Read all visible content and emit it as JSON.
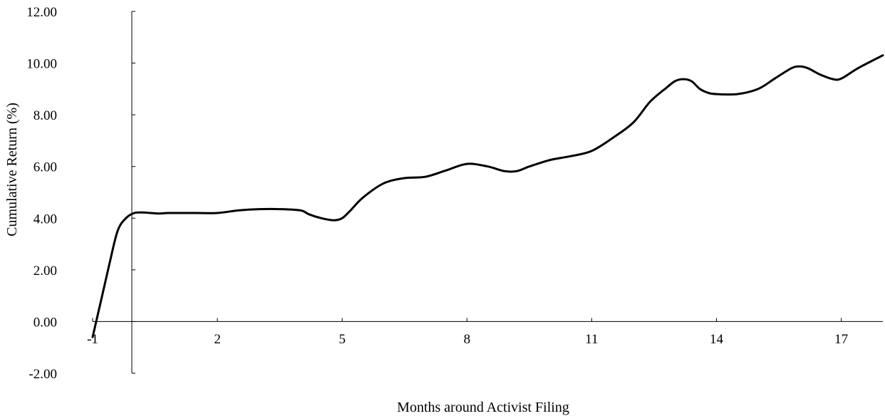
{
  "chart_data": {
    "type": "line",
    "title": "",
    "xlabel": "Months around Activist Filing",
    "ylabel": "Cumulative Return (%)",
    "xlim": [
      -1,
      18
    ],
    "ylim": [
      -2,
      12
    ],
    "x_ticks": [
      -1,
      2,
      5,
      8,
      11,
      14,
      17
    ],
    "x_tick_labels": [
      "-1",
      "2",
      "5",
      "8",
      "11",
      "14",
      "17"
    ],
    "y_ticks": [
      -2,
      0,
      2,
      4,
      6,
      8,
      10,
      12
    ],
    "y_tick_labels": [
      "-2.00",
      "0.00",
      "2.00",
      "4.00",
      "6.00",
      "8.00",
      "10.00",
      "12.00"
    ],
    "grid": false,
    "legend": "none",
    "line_color": "#000000",
    "series": [
      {
        "x": [
          -1,
          -0.8,
          -0.6,
          -0.4,
          -0.2,
          0,
          0.2,
          0.4,
          0.6,
          0.8,
          1,
          1.5,
          2,
          2.5,
          3,
          3.5,
          4,
          4.2,
          4.5,
          4.8,
          5,
          5.2,
          5.5,
          6,
          6.5,
          7,
          7.5,
          8,
          8.5,
          8.9,
          9.2,
          9.5,
          10,
          10.5,
          11,
          11.5,
          12,
          12.4,
          12.8,
          13,
          13.2,
          13.4,
          13.6,
          13.8,
          14,
          14.5,
          15,
          15.4,
          15.8,
          16,
          16.2,
          16.5,
          16.8,
          17,
          17.4,
          18
        ],
        "y": [
          -0.6,
          0.8,
          2.2,
          3.5,
          4.0,
          4.2,
          4.22,
          4.2,
          4.18,
          4.2,
          4.2,
          4.2,
          4.2,
          4.3,
          4.35,
          4.35,
          4.3,
          4.15,
          4.0,
          3.92,
          4.0,
          4.3,
          4.8,
          5.35,
          5.55,
          5.6,
          5.85,
          6.1,
          6.0,
          5.82,
          5.82,
          6.0,
          6.25,
          6.4,
          6.6,
          7.1,
          7.7,
          8.5,
          9.05,
          9.3,
          9.38,
          9.3,
          9.0,
          8.85,
          8.8,
          8.8,
          9.0,
          9.4,
          9.8,
          9.87,
          9.8,
          9.55,
          9.38,
          9.4,
          9.8,
          10.3
        ]
      }
    ]
  }
}
